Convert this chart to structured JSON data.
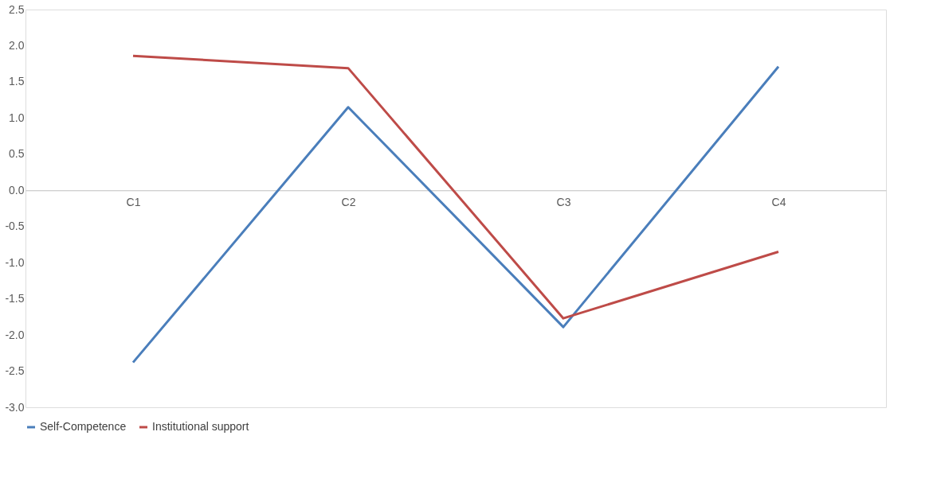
{
  "chart_data": {
    "type": "line",
    "categories": [
      "C1",
      "C2",
      "C3",
      "C4"
    ],
    "series": [
      {
        "name": "Self-Competence",
        "color": "#4a7ebb",
        "values": [
          -2.38,
          1.15,
          -1.89,
          1.71
        ]
      },
      {
        "name": "Institutional support",
        "color": "#be4b48",
        "values": [
          1.86,
          1.69,
          -1.77,
          -0.85
        ]
      }
    ],
    "ylim": [
      -3.0,
      2.5
    ],
    "yticks": [
      {
        "value": -3.0,
        "label": "-3.0"
      },
      {
        "value": -2.5,
        "label": "-2.5"
      },
      {
        "value": -2.0,
        "label": "-2.0"
      },
      {
        "value": -1.5,
        "label": "-1.5"
      },
      {
        "value": -1.0,
        "label": "-1.0"
      },
      {
        "value": -0.5,
        "label": "-0.5"
      },
      {
        "value": 0.0,
        "label": "0.0"
      },
      {
        "value": 0.5,
        "label": "0.5"
      },
      {
        "value": 1.0,
        "label": "1.0"
      },
      {
        "value": 1.5,
        "label": "1.5"
      },
      {
        "value": 2.0,
        "label": "2.0"
      },
      {
        "value": 2.5,
        "label": "2.5"
      }
    ],
    "grid": false,
    "legend": "bottom",
    "marker": "none",
    "line_style": "solid"
  }
}
